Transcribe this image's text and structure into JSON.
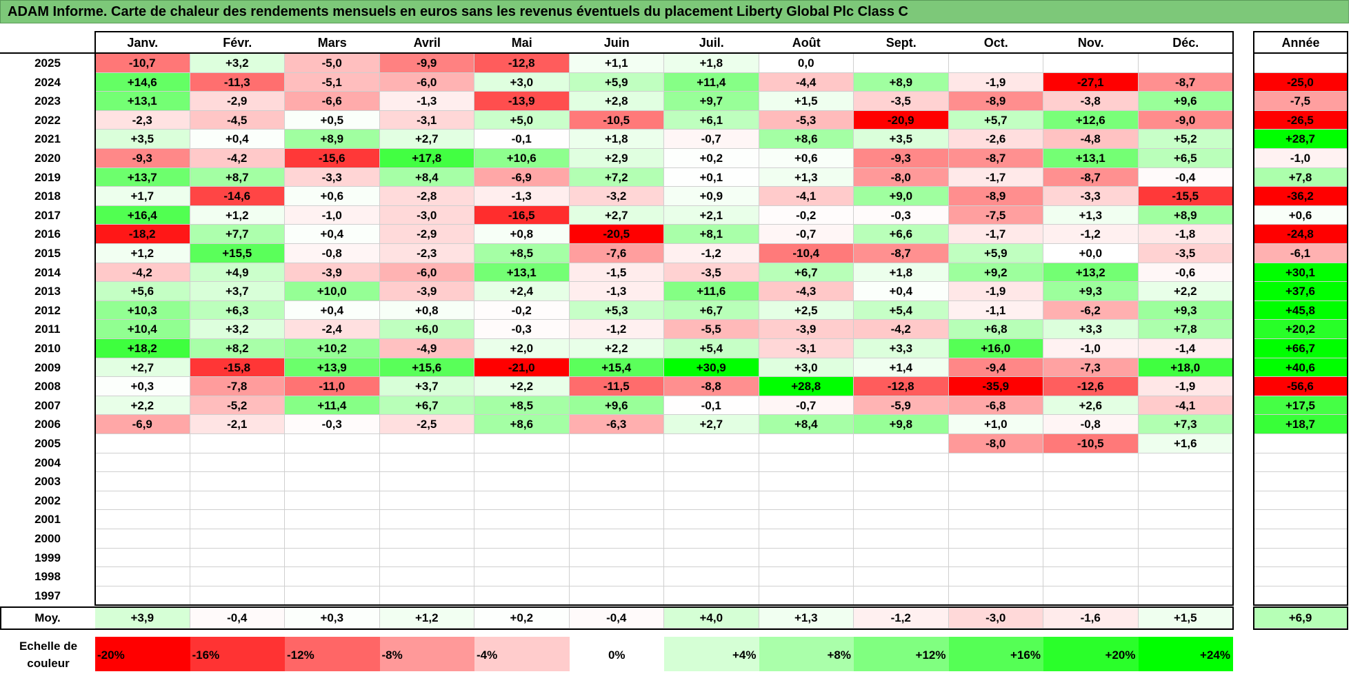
{
  "title": "ADAM Informe. Carte de chaleur des rendements mensuels en euros sans les revenus éventuels du placement Liberty Global Plc Class C",
  "colors": {
    "title_bg": "#7dc879",
    "max_red": "#ff0000",
    "max_green": "#00ff00",
    "neutral": "#ffffff"
  },
  "chart_data": {
    "type": "heatmap",
    "months": [
      "Janv.",
      "Févr.",
      "Mars",
      "Avril",
      "Mai",
      "Juin",
      "Juil.",
      "Août",
      "Sept.",
      "Oct.",
      "Nov.",
      "Déc."
    ],
    "year_header": "Année",
    "average_label": "Moy.",
    "rows": [
      {
        "year": "2025",
        "values": [
          "-10,7",
          "+3,2",
          "-5,0",
          "-9,9",
          "-12,8",
          "+1,1",
          "+1,8",
          "0,0",
          "",
          "",
          "",
          ""
        ],
        "annual": ""
      },
      {
        "year": "2024",
        "values": [
          "+14,6",
          "-11,3",
          "-5,1",
          "-6,0",
          "+3,0",
          "+5,9",
          "+11,4",
          "-4,4",
          "+8,9",
          "-1,9",
          "-27,1",
          "-8,7"
        ],
        "annual": "-25,0"
      },
      {
        "year": "2023",
        "values": [
          "+13,1",
          "-2,9",
          "-6,6",
          "-1,3",
          "-13,9",
          "+2,8",
          "+9,7",
          "+1,5",
          "-3,5",
          "-8,9",
          "-3,8",
          "+9,6"
        ],
        "annual": "-7,5"
      },
      {
        "year": "2022",
        "values": [
          "-2,3",
          "-4,5",
          "+0,5",
          "-3,1",
          "+5,0",
          "-10,5",
          "+6,1",
          "-5,3",
          "-20,9",
          "+5,7",
          "+12,6",
          "-9,0"
        ],
        "annual": "-26,5"
      },
      {
        "year": "2021",
        "values": [
          "+3,5",
          "+0,4",
          "+8,9",
          "+2,7",
          "-0,1",
          "+1,8",
          "-0,7",
          "+8,6",
          "+3,5",
          "-2,6",
          "-4,8",
          "+5,2"
        ],
        "annual": "+28,7"
      },
      {
        "year": "2020",
        "values": [
          "-9,3",
          "-4,2",
          "-15,6",
          "+17,8",
          "+10,6",
          "+2,9",
          "+0,2",
          "+0,6",
          "-9,3",
          "-8,7",
          "+13,1",
          "+6,5"
        ],
        "annual": "-1,0"
      },
      {
        "year": "2019",
        "values": [
          "+13,7",
          "+8,7",
          "-3,3",
          "+8,4",
          "-6,9",
          "+7,2",
          "+0,1",
          "+1,3",
          "-8,0",
          "-1,7",
          "-8,7",
          "-0,4"
        ],
        "annual": "+7,8"
      },
      {
        "year": "2018",
        "values": [
          "+1,7",
          "-14,6",
          "+0,6",
          "-2,8",
          "-1,3",
          "-3,2",
          "+0,9",
          "-4,1",
          "+9,0",
          "-8,9",
          "-3,3",
          "-15,5"
        ],
        "annual": "-36,2"
      },
      {
        "year": "2017",
        "values": [
          "+16,4",
          "+1,2",
          "-1,0",
          "-3,0",
          "-16,5",
          "+2,7",
          "+2,1",
          "-0,2",
          "-0,3",
          "-7,5",
          "+1,3",
          "+8,9"
        ],
        "annual": "+0,6"
      },
      {
        "year": "2016",
        "values": [
          "-18,2",
          "+7,7",
          "+0,4",
          "-2,9",
          "+0,8",
          "-20,5",
          "+8,1",
          "-0,7",
          "+6,6",
          "-1,7",
          "-1,2",
          "-1,8"
        ],
        "annual": "-24,8"
      },
      {
        "year": "2015",
        "values": [
          "+1,2",
          "+15,5",
          "-0,8",
          "-2,3",
          "+8,5",
          "-7,6",
          "-1,2",
          "-10,4",
          "-8,7",
          "+5,9",
          "+0,0",
          "-3,5"
        ],
        "annual": "-6,1"
      },
      {
        "year": "2014",
        "values": [
          "-4,2",
          "+4,9",
          "-3,9",
          "-6,0",
          "+13,1",
          "-1,5",
          "-3,5",
          "+6,7",
          "+1,8",
          "+9,2",
          "+13,2",
          "-0,6"
        ],
        "annual": "+30,1"
      },
      {
        "year": "2013",
        "values": [
          "+5,6",
          "+3,7",
          "+10,0",
          "-3,9",
          "+2,4",
          "-1,3",
          "+11,6",
          "-4,3",
          "+0,4",
          "-1,9",
          "+9,3",
          "+2,2"
        ],
        "annual": "+37,6"
      },
      {
        "year": "2012",
        "values": [
          "+10,3",
          "+6,3",
          "+0,4",
          "+0,8",
          "-0,2",
          "+5,3",
          "+6,7",
          "+2,5",
          "+5,4",
          "-1,1",
          "-6,2",
          "+9,3"
        ],
        "annual": "+45,8"
      },
      {
        "year": "2011",
        "values": [
          "+10,4",
          "+3,2",
          "-2,4",
          "+6,0",
          "-0,3",
          "-1,2",
          "-5,5",
          "-3,9",
          "-4,2",
          "+6,8",
          "+3,3",
          "+7,8"
        ],
        "annual": "+20,2"
      },
      {
        "year": "2010",
        "values": [
          "+18,2",
          "+8,2",
          "+10,2",
          "-4,9",
          "+2,0",
          "+2,2",
          "+5,4",
          "-3,1",
          "+3,3",
          "+16,0",
          "-1,0",
          "-1,4"
        ],
        "annual": "+66,7"
      },
      {
        "year": "2009",
        "values": [
          "+2,7",
          "-15,8",
          "+13,9",
          "+15,6",
          "-21,0",
          "+15,4",
          "+30,9",
          "+3,0",
          "+1,4",
          "-9,4",
          "-7,3",
          "+18,0"
        ],
        "annual": "+40,6"
      },
      {
        "year": "2008",
        "values": [
          "+0,3",
          "-7,8",
          "-11,0",
          "+3,7",
          "+2,2",
          "-11,5",
          "-8,8",
          "+28,8",
          "-12,8",
          "-35,9",
          "-12,6",
          "-1,9"
        ],
        "annual": "-56,6"
      },
      {
        "year": "2007",
        "values": [
          "+2,2",
          "-5,2",
          "+11,4",
          "+6,7",
          "+8,5",
          "+9,6",
          "-0,1",
          "-0,7",
          "-5,9",
          "-6,8",
          "+2,6",
          "-4,1"
        ],
        "annual": "+17,5"
      },
      {
        "year": "2006",
        "values": [
          "-6,9",
          "-2,1",
          "-0,3",
          "-2,5",
          "+8,6",
          "-6,3",
          "+2,7",
          "+8,4",
          "+9,8",
          "+1,0",
          "-0,8",
          "+7,3"
        ],
        "annual": "+18,7"
      },
      {
        "year": "2005",
        "values": [
          "",
          "",
          "",
          "",
          "",
          "",
          "",
          "",
          "",
          "-8,0",
          "-10,5",
          "+1,6"
        ],
        "annual": ""
      },
      {
        "year": "2004",
        "values": [
          "",
          "",
          "",
          "",
          "",
          "",
          "",
          "",
          "",
          "",
          "",
          ""
        ],
        "annual": ""
      },
      {
        "year": "2003",
        "values": [
          "",
          "",
          "",
          "",
          "",
          "",
          "",
          "",
          "",
          "",
          "",
          ""
        ],
        "annual": ""
      },
      {
        "year": "2002",
        "values": [
          "",
          "",
          "",
          "",
          "",
          "",
          "",
          "",
          "",
          "",
          "",
          ""
        ],
        "annual": ""
      },
      {
        "year": "2001",
        "values": [
          "",
          "",
          "",
          "",
          "",
          "",
          "",
          "",
          "",
          "",
          "",
          ""
        ],
        "annual": ""
      },
      {
        "year": "2000",
        "values": [
          "",
          "",
          "",
          "",
          "",
          "",
          "",
          "",
          "",
          "",
          "",
          ""
        ],
        "annual": ""
      },
      {
        "year": "1999",
        "values": [
          "",
          "",
          "",
          "",
          "",
          "",
          "",
          "",
          "",
          "",
          "",
          ""
        ],
        "annual": ""
      },
      {
        "year": "1998",
        "values": [
          "",
          "",
          "",
          "",
          "",
          "",
          "",
          "",
          "",
          "",
          "",
          ""
        ],
        "annual": ""
      },
      {
        "year": "1997",
        "values": [
          "",
          "",
          "",
          "",
          "",
          "",
          "",
          "",
          "",
          "",
          "",
          ""
        ],
        "annual": ""
      }
    ],
    "averages": [
      "+3,9",
      "-0,4",
      "+0,3",
      "+1,2",
      "+0,2",
      "-0,4",
      "+4,0",
      "+1,3",
      "-1,2",
      "-3,0",
      "-1,6",
      "+1,5"
    ],
    "average_annual": "+6,9",
    "color_scale": {
      "label_line1": "Echelle de",
      "label_line2": "couleur",
      "stops": [
        {
          "label": "-20%",
          "value": -20
        },
        {
          "label": "-16%",
          "value": -16
        },
        {
          "label": "-12%",
          "value": -12
        },
        {
          "label": "-8%",
          "value": -8
        },
        {
          "label": "-4%",
          "value": -4
        },
        {
          "label": "0%",
          "value": 0
        },
        {
          "label": "+4%",
          "value": 4
        },
        {
          "label": "+8%",
          "value": 8
        },
        {
          "label": "+12%",
          "value": 12
        },
        {
          "label": "+16%",
          "value": 16
        },
        {
          "label": "+20%",
          "value": 20
        },
        {
          "label": "+24%",
          "value": 24
        }
      ]
    }
  }
}
